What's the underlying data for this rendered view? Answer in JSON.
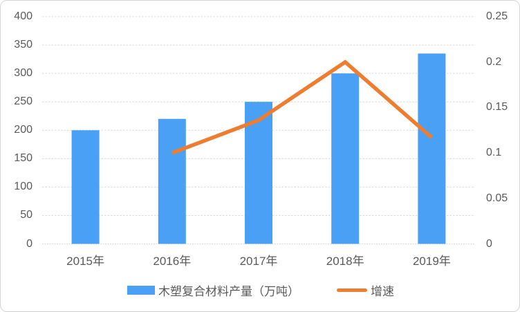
{
  "chart_data": {
    "type": "combo-bar-line",
    "title": "",
    "categories": [
      "2015年",
      "2016年",
      "2017年",
      "2018年",
      "2019年"
    ],
    "series": [
      {
        "name": "木塑复合材料产量（万吨）",
        "type": "bar",
        "axis": "left",
        "color": "#4AA0F5",
        "values": [
          200,
          220,
          250,
          300,
          335
        ]
      },
      {
        "name": "增速",
        "type": "line",
        "axis": "right",
        "color": "#ED7D31",
        "values": [
          null,
          0.1,
          0.136,
          0.2,
          0.117
        ]
      }
    ],
    "axes": {
      "left": {
        "min": 0,
        "max": 400,
        "step": 0.5,
        "tick_labels": [
          "400",
          "350",
          "300",
          "250",
          "200",
          "150",
          "100",
          "50",
          "0"
        ]
      },
      "right": {
        "min": 0,
        "max": 0.25,
        "step": 0.05,
        "tick_labels": [
          "0.25",
          "0.2",
          "0.15",
          "0.1",
          "0.05",
          "0"
        ]
      }
    },
    "grid": {
      "show": true,
      "color": "#D9D9D9",
      "style": "dashed"
    },
    "legend_position": "bottom",
    "label_color": "#595959"
  }
}
